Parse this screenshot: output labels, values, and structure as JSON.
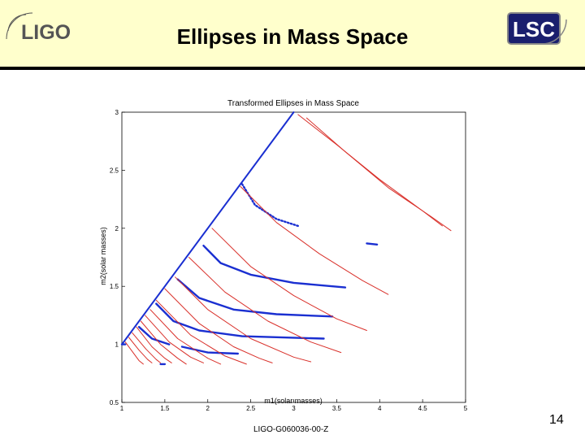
{
  "header": {
    "title": "Ellipses in Mass Space",
    "ligo_logo_text": "LIGO",
    "lsc_logo_text": "LSC",
    "band_color": "#ffffcc"
  },
  "footer": {
    "doc_id": "LIGO-G060036-00-Z",
    "page_number": "14"
  },
  "chart_data": {
    "type": "scatter",
    "title": "Transformed Ellipses in Mass Space",
    "xlabel": "m1(solar masses)",
    "ylabel": "m2(solar masses)",
    "xlim": [
      1,
      5
    ],
    "ylim": [
      0.5,
      3
    ],
    "xticks": [
      "1",
      "1.5",
      "2",
      "2.5",
      "3",
      "3.5",
      "4",
      "4.5",
      "5"
    ],
    "yticks": [
      "0.5",
      "1",
      "1.5",
      "2",
      "2.5",
      "3"
    ],
    "grid": false,
    "colors": {
      "blue": "#1a2fd1",
      "red": "#d9302a"
    },
    "series": [
      {
        "color": "blue",
        "kind": "line",
        "points": [
          [
            1,
            1
          ],
          [
            3,
            3
          ]
        ]
      },
      {
        "color": "blue",
        "kind": "curve",
        "points": [
          [
            2.4,
            2.38
          ],
          [
            2.55,
            2.2
          ],
          [
            2.8,
            2.08
          ],
          [
            3.05,
            2.02
          ]
        ]
      },
      {
        "color": "blue",
        "kind": "curve",
        "points": [
          [
            1.95,
            1.85
          ],
          [
            2.15,
            1.7
          ],
          [
            2.5,
            1.6
          ],
          [
            3.0,
            1.53
          ],
          [
            3.6,
            1.49
          ]
        ]
      },
      {
        "color": "blue",
        "kind": "curve",
        "points": [
          [
            1.65,
            1.56
          ],
          [
            1.9,
            1.4
          ],
          [
            2.3,
            1.3
          ],
          [
            2.8,
            1.26
          ],
          [
            3.45,
            1.24
          ]
        ]
      },
      {
        "color": "blue",
        "kind": "curve",
        "points": [
          [
            1.4,
            1.35
          ],
          [
            1.6,
            1.2
          ],
          [
            1.9,
            1.12
          ],
          [
            2.4,
            1.07
          ],
          [
            3.35,
            1.05
          ]
        ]
      },
      {
        "color": "blue",
        "kind": "curve",
        "points": [
          [
            1.2,
            1.15
          ],
          [
            1.35,
            1.05
          ],
          [
            1.55,
            1.0
          ]
        ]
      },
      {
        "color": "blue",
        "kind": "curve",
        "points": [
          [
            1.7,
            0.98
          ],
          [
            2.0,
            0.93
          ],
          [
            2.35,
            0.92
          ]
        ]
      },
      {
        "color": "blue",
        "kind": "curve",
        "points": [
          [
            1.45,
            0.83
          ],
          [
            1.5,
            0.83
          ]
        ]
      },
      {
        "color": "blue",
        "kind": "curve",
        "points": [
          [
            3.85,
            1.87
          ],
          [
            3.97,
            1.86
          ]
        ]
      },
      {
        "color": "blue",
        "kind": "curve",
        "points": [
          [
            1.0,
            1.0
          ],
          [
            1.04,
            1.0
          ]
        ]
      },
      {
        "color": "red",
        "kind": "curve",
        "points": [
          [
            3.05,
            2.98
          ],
          [
            3.5,
            2.72
          ],
          [
            4.0,
            2.42
          ],
          [
            4.5,
            2.15
          ],
          [
            4.73,
            2.02
          ]
        ]
      },
      {
        "color": "red",
        "kind": "curve",
        "points": [
          [
            3.15,
            2.95
          ],
          [
            3.6,
            2.66
          ],
          [
            4.1,
            2.35
          ],
          [
            4.6,
            2.1
          ],
          [
            4.83,
            1.98
          ]
        ]
      },
      {
        "color": "red",
        "kind": "curve",
        "points": [
          [
            2.38,
            2.36
          ],
          [
            2.8,
            2.05
          ],
          [
            3.3,
            1.78
          ],
          [
            3.8,
            1.55
          ],
          [
            4.1,
            1.43
          ]
        ]
      },
      {
        "color": "red",
        "kind": "curve",
        "points": [
          [
            2.05,
            2.0
          ],
          [
            2.5,
            1.67
          ],
          [
            3.0,
            1.42
          ],
          [
            3.5,
            1.22
          ],
          [
            3.85,
            1.12
          ]
        ]
      },
      {
        "color": "red",
        "kind": "curve",
        "points": [
          [
            1.78,
            1.75
          ],
          [
            2.2,
            1.45
          ],
          [
            2.7,
            1.2
          ],
          [
            3.2,
            1.02
          ],
          [
            3.55,
            0.93
          ]
        ]
      },
      {
        "color": "red",
        "kind": "curve",
        "points": [
          [
            1.62,
            1.58
          ],
          [
            2.0,
            1.3
          ],
          [
            2.5,
            1.05
          ],
          [
            3.0,
            0.89
          ],
          [
            3.2,
            0.85
          ]
        ]
      },
      {
        "color": "red",
        "kind": "curve",
        "points": [
          [
            1.5,
            1.48
          ],
          [
            1.9,
            1.18
          ],
          [
            2.3,
            0.98
          ],
          [
            2.6,
            0.88
          ],
          [
            2.75,
            0.84
          ]
        ]
      },
      {
        "color": "red",
        "kind": "curve",
        "points": [
          [
            1.4,
            1.38
          ],
          [
            1.8,
            1.08
          ],
          [
            2.2,
            0.9
          ],
          [
            2.45,
            0.83
          ]
        ]
      },
      {
        "color": "red",
        "kind": "curve",
        "points": [
          [
            1.33,
            1.3
          ],
          [
            1.65,
            1.05
          ],
          [
            2.0,
            0.88
          ],
          [
            2.15,
            0.83
          ]
        ]
      },
      {
        "color": "red",
        "kind": "curve",
        "points": [
          [
            1.27,
            1.25
          ],
          [
            1.55,
            1.02
          ],
          [
            1.8,
            0.89
          ],
          [
            1.95,
            0.84
          ]
        ]
      },
      {
        "color": "red",
        "kind": "curve",
        "points": [
          [
            1.22,
            1.2
          ],
          [
            1.45,
            1.0
          ],
          [
            1.65,
            0.88
          ],
          [
            1.75,
            0.83
          ]
        ]
      },
      {
        "color": "red",
        "kind": "curve",
        "points": [
          [
            1.17,
            1.15
          ],
          [
            1.35,
            0.98
          ],
          [
            1.5,
            0.88
          ],
          [
            1.58,
            0.84
          ]
        ]
      },
      {
        "color": "red",
        "kind": "curve",
        "points": [
          [
            1.12,
            1.1
          ],
          [
            1.28,
            0.96
          ],
          [
            1.4,
            0.87
          ],
          [
            1.45,
            0.84
          ]
        ]
      },
      {
        "color": "red",
        "kind": "curve",
        "points": [
          [
            1.08,
            1.06
          ],
          [
            1.2,
            0.95
          ],
          [
            1.3,
            0.87
          ],
          [
            1.35,
            0.84
          ]
        ]
      },
      {
        "color": "red",
        "kind": "curve",
        "points": [
          [
            1.04,
            1.02
          ],
          [
            1.13,
            0.93
          ],
          [
            1.2,
            0.86
          ],
          [
            1.25,
            0.83
          ]
        ]
      }
    ]
  }
}
